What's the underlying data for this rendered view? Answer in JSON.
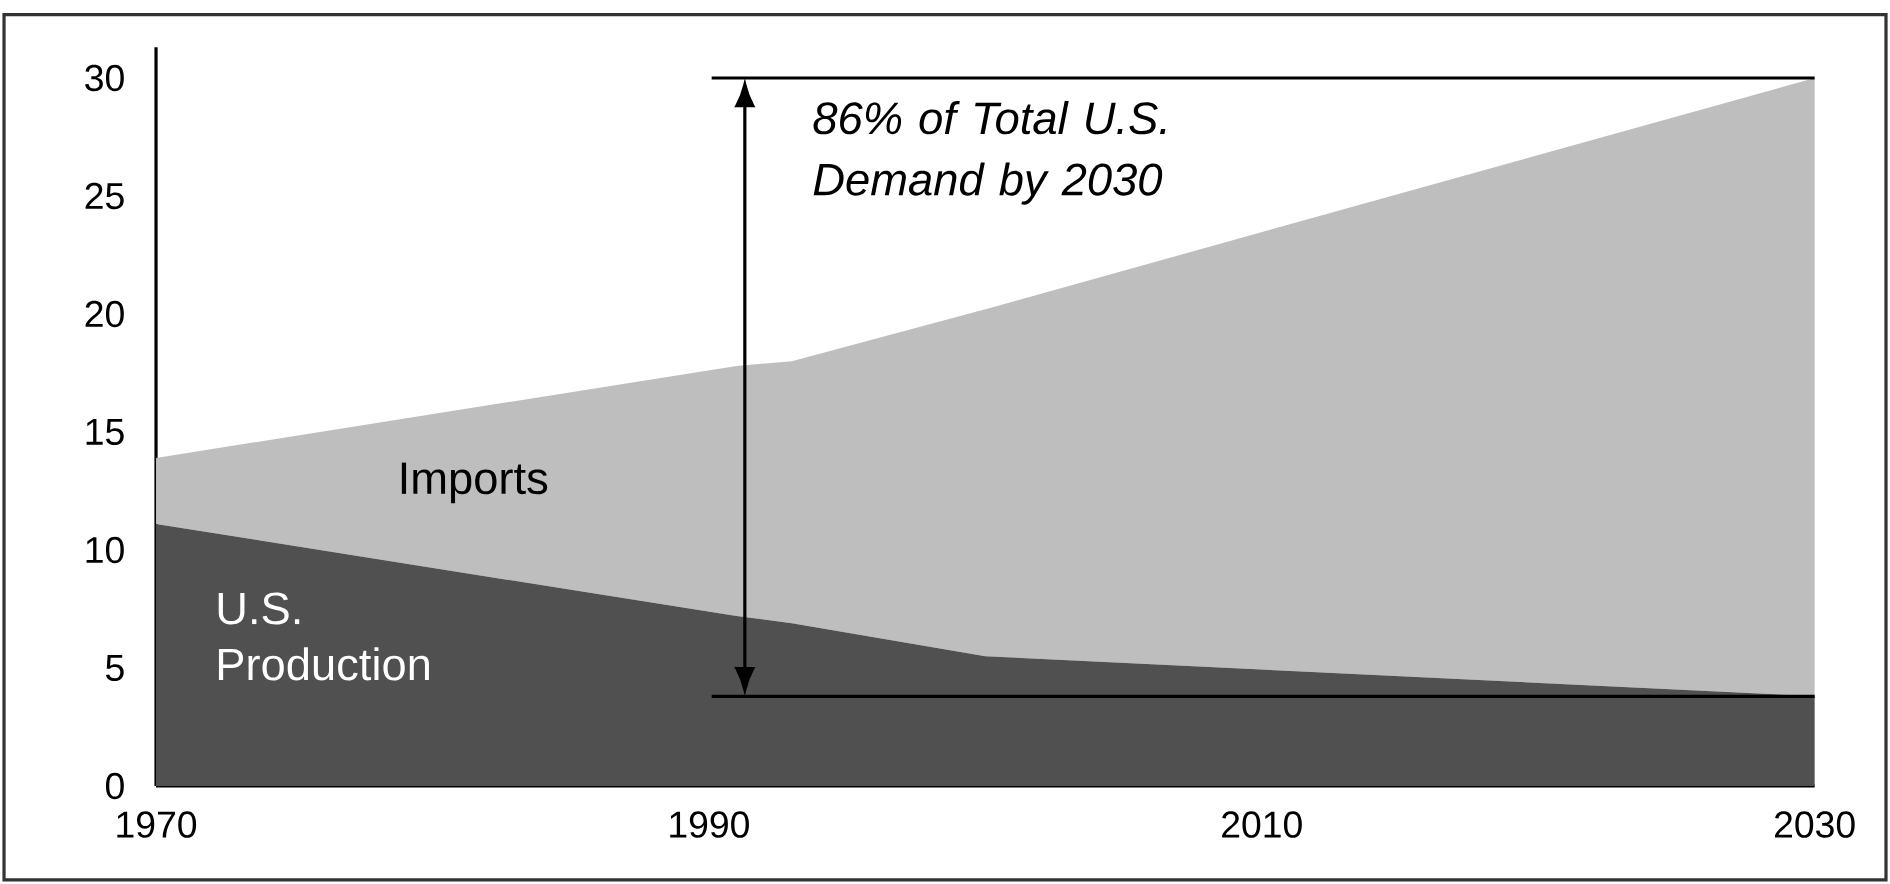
{
  "chart_data": {
    "type": "area",
    "stacked": true,
    "x": [
      1970,
      1991,
      1993,
      2000,
      2030
    ],
    "series": [
      {
        "name": "U.S. Production",
        "color": "#505050",
        "values": [
          11.1,
          7.2,
          6.9,
          5.5,
          3.8
        ]
      },
      {
        "name": "Imports",
        "color": "#bebebe",
        "values": [
          2.8,
          10.6,
          11.1,
          14.7,
          26.2
        ]
      }
    ],
    "xlim": [
      1970,
      2030
    ],
    "ylim": [
      0,
      31.3
    ],
    "xticks": [
      1970,
      1990,
      2010,
      2030
    ],
    "yticks": [
      0,
      5,
      10,
      15,
      20,
      25,
      30
    ],
    "ref_lines": [
      {
        "axis": "y",
        "value": 30,
        "color": "#000000"
      },
      {
        "axis": "y",
        "value": 3.8,
        "color": "#000000"
      }
    ],
    "annotations": [
      "86% of Total U.S. Demand by 2030"
    ],
    "grid": false,
    "legend": false
  }
}
